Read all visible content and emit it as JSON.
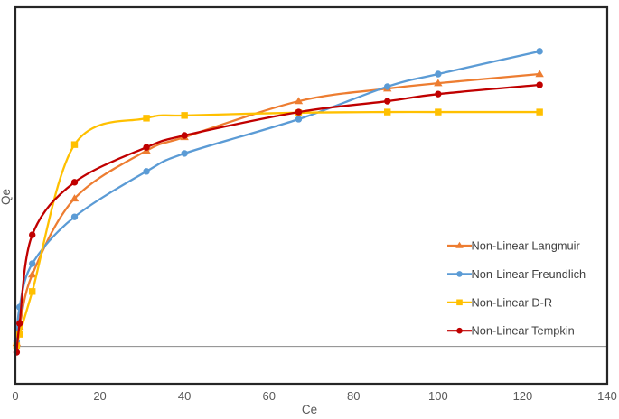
{
  "chart_data": {
    "type": "line",
    "title": "",
    "xlabel": "Ce",
    "ylabel": "Qe",
    "xlim": [
      0,
      140
    ],
    "x_ticks": [
      0,
      20,
      40,
      60,
      80,
      100,
      120,
      140
    ],
    "ylim": [
      -11,
      100
    ],
    "y_ticks": [],
    "grid": "single horizontal gridline at Qe=0",
    "legend_position": "inside-right",
    "x": [
      0.3,
      1,
      4,
      14,
      31,
      40,
      67,
      88,
      100,
      124
    ],
    "series": [
      {
        "name": "Non-Linear Langmuir",
        "color": "#ED7D31",
        "marker": "triangle",
        "values": [
          1.0,
          5.8,
          21.2,
          43.6,
          57.7,
          61.7,
          72.3,
          76.0,
          77.6,
          80.3
        ]
      },
      {
        "name": "Non-Linear Freundlich",
        "color": "#5B9BD5",
        "marker": "circle",
        "values": [
          1.5,
          11.6,
          24.4,
          38.2,
          51.6,
          56.9,
          67.0,
          76.6,
          80.3,
          87.0
        ]
      },
      {
        "name": "Non-Linear D-R",
        "color": "#FFC000",
        "marker": "square",
        "values": [
          0.2,
          3.6,
          16.2,
          59.5,
          67.3,
          68.1,
          68.9,
          69.1,
          69.1,
          69.1
        ]
      },
      {
        "name": "Non-Linear Tempkin",
        "color": "#C00000",
        "marker": "circle",
        "values": [
          -1.7,
          6.8,
          32.9,
          48.4,
          58.7,
          62.2,
          69.1,
          72.3,
          74.4,
          77.1
        ]
      }
    ],
    "colors": {
      "background": "#ffffff",
      "frame": "#262626",
      "zero_line": "#8a8a8a",
      "tick_text": "#595959",
      "legend_text": "#3f3f3f"
    }
  }
}
